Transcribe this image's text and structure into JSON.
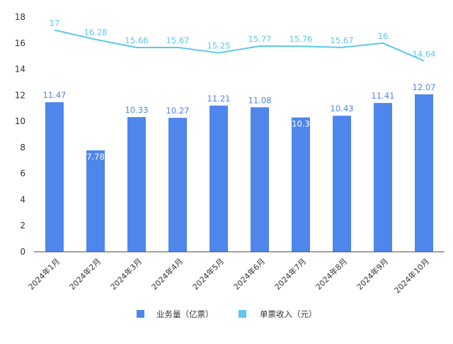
{
  "colors": {
    "bar": "#4f86ec",
    "line": "#5cc8ea",
    "axis": "#444444",
    "text": "#333333"
  },
  "chart_data": {
    "type": "bar+line",
    "categories": [
      "2024年1月",
      "2024年2月",
      "2024年3月",
      "2024年4月",
      "2024年5月",
      "2024年6月",
      "2024年7月",
      "2024年8月",
      "2024年9月",
      "2024年10月"
    ],
    "series": [
      {
        "name": "业务量（亿票）",
        "type": "bar",
        "values": [
          11.47,
          7.78,
          10.33,
          10.27,
          11.21,
          11.08,
          10.3,
          10.43,
          11.41,
          12.07
        ]
      },
      {
        "name": "单票收入（元）",
        "type": "line",
        "values": [
          17,
          16.28,
          15.66,
          15.67,
          15.25,
          15.77,
          15.76,
          15.67,
          16,
          14.64
        ]
      }
    ],
    "y_ticks": [
      0,
      2,
      4,
      6,
      8,
      10,
      12,
      14,
      16,
      18
    ],
    "ylim": [
      0,
      18
    ],
    "grid": false,
    "legend_position": "bottom"
  }
}
